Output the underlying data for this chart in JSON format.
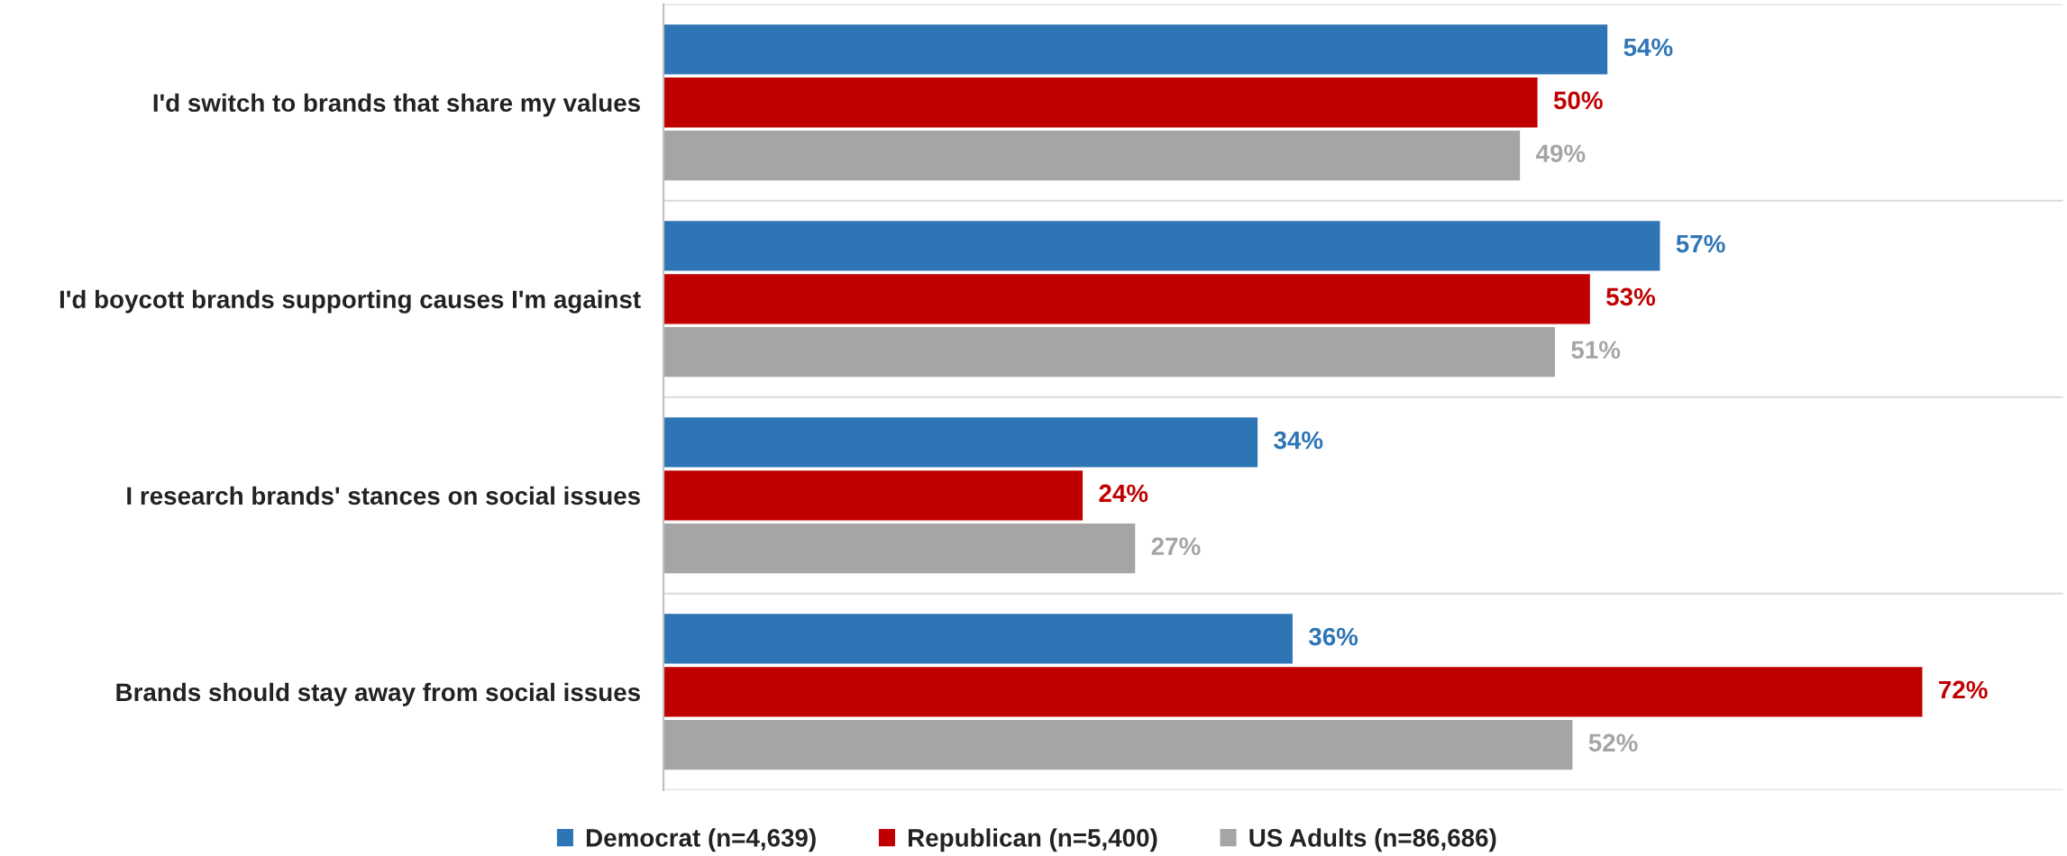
{
  "chart_data": {
    "type": "bar",
    "orientation": "horizontal",
    "categories": [
      "I'd switch to brands that share my values",
      "I'd boycott brands supporting causes I'm against",
      "I research brands' stances on social issues",
      "Brands should stay away from social issues"
    ],
    "series": [
      {
        "name": "Democrat (n=4,639)",
        "color": "#2e75b6",
        "values": [
          54,
          57,
          34,
          36
        ],
        "value_labels": [
          "54%",
          "57%",
          "34%",
          "36%"
        ]
      },
      {
        "name": "Republican (n=5,400)",
        "color": "#c00000",
        "values": [
          50,
          53,
          24,
          72
        ],
        "value_labels": [
          "50%",
          "53%",
          "24%",
          "72%"
        ]
      },
      {
        "name": "US Adults (n=86,686)",
        "color": "#a5a5a5",
        "values": [
          49,
          51,
          27,
          52
        ],
        "value_labels": [
          "49%",
          "51%",
          "27%",
          "52%"
        ]
      }
    ],
    "xlim": [
      0,
      80
    ],
    "tick_labels": "y",
    "grid": "y",
    "legend": "bottom"
  }
}
